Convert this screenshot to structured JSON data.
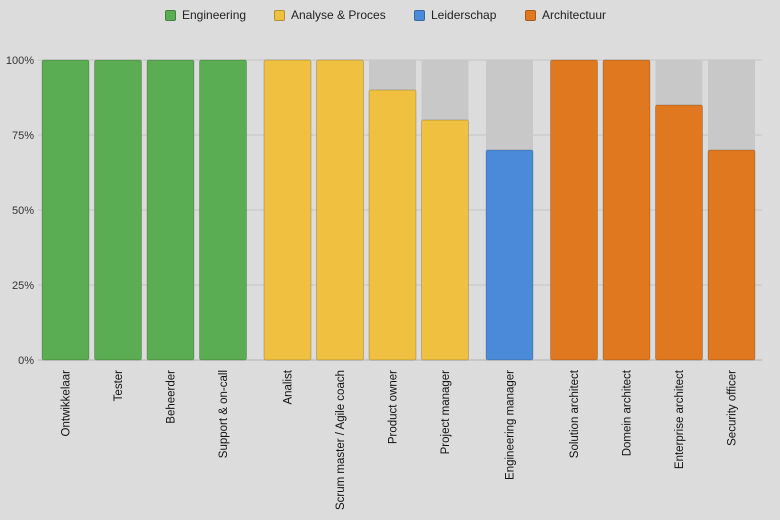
{
  "chart_data": {
    "type": "bar",
    "categories": [
      "Ontwikkelaar",
      "Tester",
      "Beheerder",
      "Support & on-call",
      "Analist",
      "Scrum master / Agile coach",
      "Product owner",
      "Project manager",
      "Engineering manager",
      "Solution architect",
      "Domein architect",
      "Enterprise architect",
      "Security officer"
    ],
    "groups": [
      {
        "name": "Engineering",
        "color": "#5aad52",
        "categories": [
          "Ontwikkelaar",
          "Tester",
          "Beheerder",
          "Support & on-call"
        ]
      },
      {
        "name": "Analyse & Proces",
        "color": "#f0c040",
        "categories": [
          "Analist",
          "Scrum master / Agile coach",
          "Product owner",
          "Project manager"
        ]
      },
      {
        "name": "Leiderschap",
        "color": "#4a8ad8",
        "categories": [
          "Engineering manager"
        ]
      },
      {
        "name": "Architectuur",
        "color": "#e07820",
        "categories": [
          "Solution architect",
          "Domein architect",
          "Enterprise architect",
          "Security officer"
        ]
      }
    ],
    "values": [
      100,
      100,
      100,
      100,
      100,
      100,
      90,
      80,
      70,
      100,
      100,
      85,
      70
    ],
    "background_value": 100,
    "background_color": "#c8c8c8",
    "ylim": [
      0,
      100
    ],
    "yticks": [
      "0%",
      "25%",
      "50%",
      "75%",
      "100%"
    ],
    "grid": true,
    "legend_position": "top-center",
    "title": "",
    "xlabel": "",
    "ylabel": ""
  },
  "legend": [
    {
      "label": "Engineering",
      "color": "#5aad52"
    },
    {
      "label": "Analyse & Proces",
      "color": "#f0c040"
    },
    {
      "label": "Leiderschap",
      "color": "#4a8ad8"
    },
    {
      "label": "Architectuur",
      "color": "#e07820"
    }
  ]
}
